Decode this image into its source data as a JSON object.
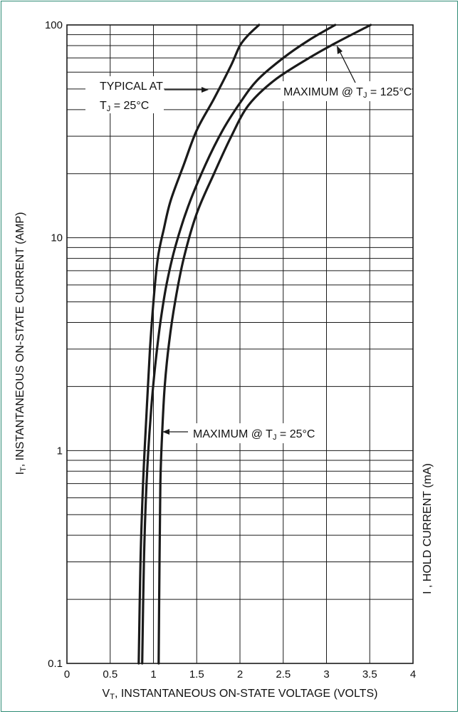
{
  "chart_data": {
    "type": "line",
    "title": "",
    "xlabel": {
      "main": "V",
      "sub": "T",
      "rest": ", INSTANTANEOUS ON-STATE VOLTAGE (VOLTS)"
    },
    "ylabel": {
      "main": "I",
      "sub": "T",
      "rest": ", INSTANTANEOUS ON-STATE CURRENT (AMP)"
    },
    "y2label": "I    , HOLD CURRENT (mA)",
    "xlim": [
      0,
      4
    ],
    "ylim": [
      0.1,
      100
    ],
    "yscale": "log",
    "grid": true,
    "x_ticks": [
      0,
      0.5,
      1,
      1.5,
      2,
      2.5,
      3,
      3.5,
      4
    ],
    "x_tick_labels": [
      "0",
      "0.5",
      "1",
      "1.5",
      "2",
      "2.5",
      "3",
      "3.5",
      "4"
    ],
    "y_ticks": [
      0.1,
      1,
      10,
      100
    ],
    "y_tick_labels": [
      "0.1",
      "1",
      "10",
      "100"
    ],
    "series": [
      {
        "key": "typical25",
        "x": [
          0.83,
          0.85,
          0.88,
          0.92,
          0.96,
          1.0,
          1.05,
          1.12,
          1.2,
          1.35,
          1.5,
          1.7,
          1.9,
          2.0,
          2.1,
          2.22
        ],
        "y": [
          0.1,
          0.3,
          0.7,
          1.5,
          3.0,
          5.0,
          8.0,
          11.0,
          15.0,
          22.0,
          32.0,
          45.0,
          65.0,
          80.0,
          90.0,
          100.0
        ]
      },
      {
        "key": "max25",
        "x": [
          0.87,
          0.89,
          0.92,
          0.97,
          1.02,
          1.08,
          1.15,
          1.25,
          1.4,
          1.6,
          1.8,
          2.0,
          2.2,
          2.5,
          2.8,
          3.1
        ],
        "y": [
          0.1,
          0.3,
          0.7,
          1.5,
          2.5,
          4.0,
          6.0,
          9.0,
          14.0,
          22.0,
          32.0,
          43.0,
          55.0,
          70.0,
          85.0,
          100.0
        ]
      },
      {
        "key": "max125",
        "x": [
          1.06,
          1.07,
          1.08,
          1.1,
          1.13,
          1.18,
          1.25,
          1.35,
          1.5,
          1.7,
          1.9,
          2.1,
          2.4,
          2.8,
          3.1,
          3.51
        ],
        "y": [
          0.1,
          0.3,
          0.7,
          1.2,
          2.0,
          3.2,
          5.0,
          8.0,
          13.0,
          20.0,
          30.0,
          42.0,
          55.0,
          70.0,
          82.0,
          100.0
        ]
      }
    ],
    "annotations": [
      {
        "key": "typical",
        "line1": "TYPICAL AT",
        "line2_main": "T",
        "line2_sub": "J",
        "line2_rest": " = 25°C"
      },
      {
        "key": "max125",
        "text": "MAXIMUM @ T",
        "sub": "J",
        "rest": " = 125°C"
      },
      {
        "key": "max25",
        "text": "MAXIMUM @ T",
        "sub": "J",
        "rest": " = 25°C"
      }
    ]
  }
}
